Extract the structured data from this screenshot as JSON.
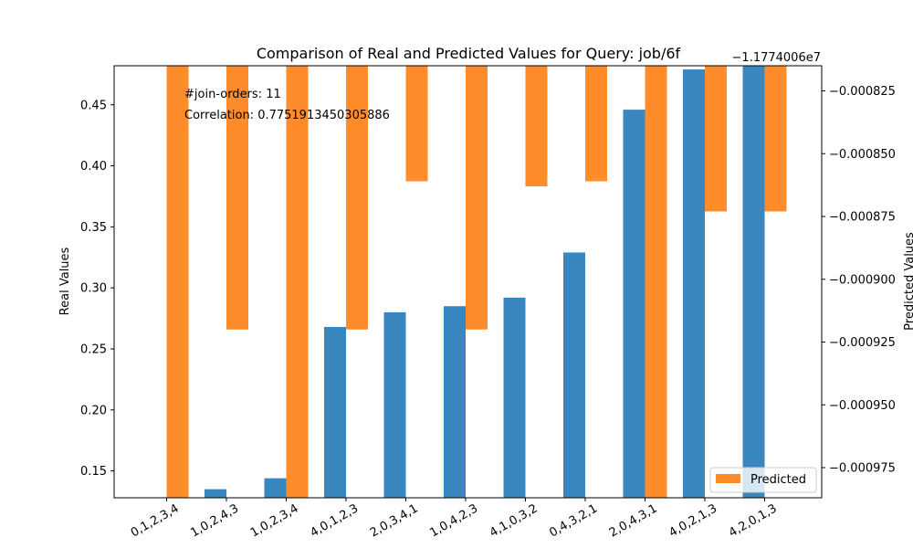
{
  "chart_data": {
    "type": "bar",
    "title": "Comparison of Real and Predicted Values for Query: job/6f",
    "categories": [
      "0,1,2,3,4",
      "1,0,2,4,3",
      "1,0,2,3,4",
      "4,0,1,2,3",
      "2,0,3,4,1",
      "1,0,4,2,3",
      "4,1,0,3,2",
      "0,4,3,2,1",
      "2,0,4,3,1",
      "4,0,2,1,3",
      "4,2,0,1,3"
    ],
    "ylabel": "Real Values",
    "y2label": "Predicted Values",
    "ylim": [
      0.128,
      0.482
    ],
    "y2lim": [
      -0.000987,
      -0.000815
    ],
    "y2_offset_text": "−1.1774006e7",
    "yticks": [
      "0.15",
      "0.20",
      "0.25",
      "0.30",
      "0.35",
      "0.40",
      "0.45"
    ],
    "y2ticks": [
      "−0.000825",
      "−0.000850",
      "−0.000875",
      "−0.000900",
      "−0.000925",
      "−0.000950",
      "−0.000975"
    ],
    "series": [
      {
        "values": [
          0.128,
          0.135,
          0.144,
          0.268,
          0.28,
          0.285,
          0.292,
          0.329,
          0.446,
          0.479,
          0.482
        ],
        "color": "#3a87bf"
      },
      {
        "name": "Predicted",
        "values": [
          -0.000987,
          -0.00092,
          -0.000987,
          -0.00092,
          -0.000861,
          -0.00092,
          -0.000863,
          -0.000861,
          -0.000987,
          -0.000873,
          -0.000873
        ],
        "color": "#ff8c2b"
      }
    ],
    "annotations": [
      "#join-orders: 11",
      "Correlation: 0.7751913450305886"
    ],
    "legend": {
      "position": "bottom-right",
      "label": "Predicted"
    },
    "grid": false
  }
}
